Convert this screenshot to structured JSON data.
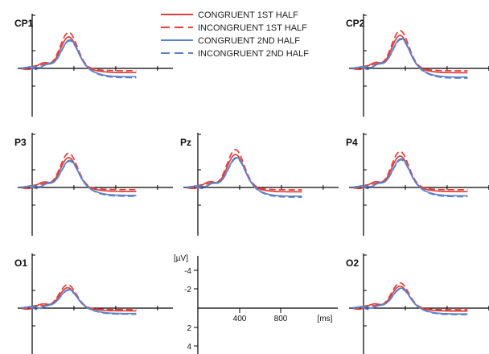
{
  "chart_data": {
    "type": "line",
    "series": [
      {
        "name": "CONGRUENT 1ST HALF",
        "color": "#e0403a",
        "dash": "solid"
      },
      {
        "name": "INCONGRUENT 1ST HALF",
        "color": "#e0403a",
        "dash": "dashed"
      },
      {
        "name": "CONGRUENT 2ND HALF",
        "color": "#5b82c8",
        "dash": "solid"
      },
      {
        "name": "INCONGRUENT 2ND HALF",
        "color": "#5b82c8",
        "dash": "dashed"
      }
    ],
    "legend_position": "top-center",
    "x_unit": "[ms]",
    "x_ticks": [
      "400",
      "800"
    ],
    "y_unit": "[µV]",
    "y_ticks": [
      "-4",
      "-2",
      "2",
      "4"
    ],
    "y_axis_note": "negative up",
    "panels": [
      {
        "label": "CP1",
        "amp": 1.0,
        "latency": 0
      },
      {
        "label": "CP2",
        "amp": 1.05,
        "latency": 0
      },
      {
        "label": "P3",
        "amp": 0.95,
        "latency": 0
      },
      {
        "label": "Pz",
        "amp": 1.05,
        "latency": 10
      },
      {
        "label": "P4",
        "amp": 1.0,
        "latency": 0
      },
      {
        "label": "O1",
        "amp": 0.65,
        "latency": -10
      },
      {
        "label": "O2",
        "amp": 0.7,
        "latency": 0
      }
    ]
  }
}
